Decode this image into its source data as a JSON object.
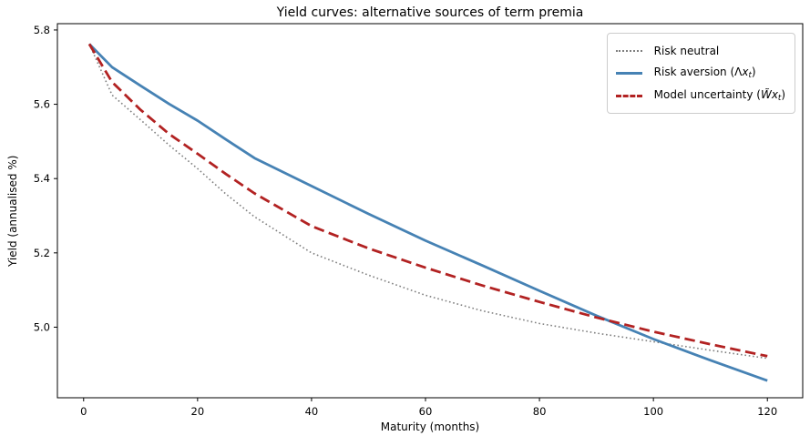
{
  "chart_data": {
    "type": "line",
    "title": "Yield curves: alternative sources of term premia",
    "xlabel": "Maturity (months)",
    "ylabel": "Yield (annualised %)",
    "xlim": [
      -4.6,
      126.2
    ],
    "ylim": [
      4.81,
      5.817
    ],
    "xticks": [
      0,
      20,
      40,
      60,
      80,
      100,
      120
    ],
    "yticks": [
      "5.0",
      "5.2",
      "5.4",
      "5.6",
      "5.8"
    ],
    "grid": false,
    "legend_position": "upper right",
    "axis_color": "#000000",
    "x": [
      1,
      5,
      10,
      15,
      20,
      25,
      30,
      40,
      50,
      60,
      70,
      80,
      90,
      100,
      110,
      120
    ],
    "series": [
      {
        "name": "Risk neutral",
        "color": "#7f7f7f",
        "linestyle": "dotted",
        "linewidth": 1.6,
        "values": [
          5.762,
          5.625,
          5.558,
          5.49,
          5.427,
          5.358,
          5.297,
          5.2,
          5.14,
          5.086,
          5.044,
          5.01,
          4.984,
          4.961,
          4.938,
          4.916
        ],
        "label_parts": [
          {
            "t": "Risk neutral"
          }
        ]
      },
      {
        "name": "Risk aversion",
        "color": "#4682b4",
        "linestyle": "solid",
        "linewidth": 2.8,
        "values": [
          5.762,
          5.7,
          5.65,
          5.601,
          5.556,
          5.505,
          5.455,
          5.38,
          5.305,
          5.233,
          5.166,
          5.098,
          5.031,
          4.968,
          4.911,
          4.856
        ],
        "label_parts": [
          {
            "t": "Risk aversion ("
          },
          {
            "t": "Λ"
          },
          {
            "t": "x",
            "i": true
          },
          {
            "t": "t",
            "i": true,
            "sub": true
          },
          {
            "t": ")"
          }
        ]
      },
      {
        "name": "Model uncertainty",
        "color": "#b22222",
        "linestyle": "dashed",
        "linewidth": 2.8,
        "values": [
          5.762,
          5.66,
          5.585,
          5.52,
          5.467,
          5.412,
          5.36,
          5.272,
          5.212,
          5.16,
          5.112,
          5.068,
          5.026,
          4.988,
          4.954,
          4.922
        ],
        "label_parts": [
          {
            "t": "Model uncertainty ("
          },
          {
            "t": "W̃",
            "i": true
          },
          {
            "t": "x",
            "i": true
          },
          {
            "t": "t",
            "i": true,
            "sub": true
          },
          {
            "t": ")"
          }
        ]
      }
    ]
  }
}
